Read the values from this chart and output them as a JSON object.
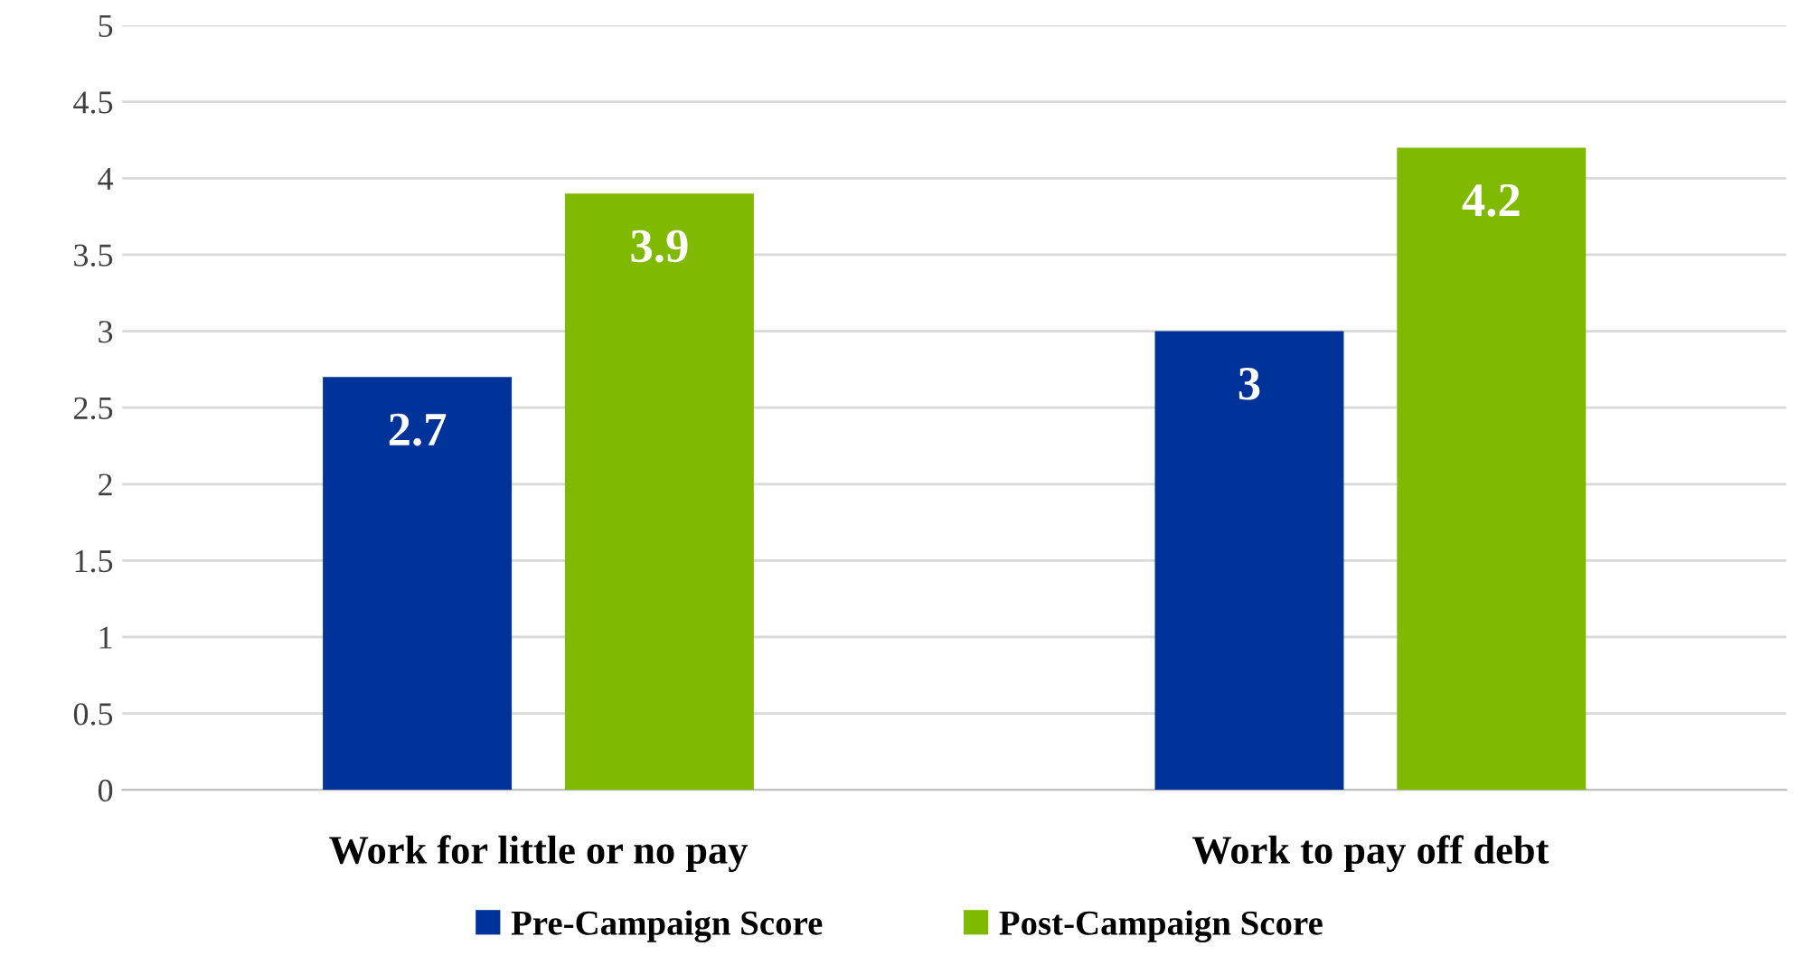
{
  "chart_data": {
    "type": "bar",
    "categories": [
      "Work for little or no pay",
      "Work to pay off debt"
    ],
    "series": [
      {
        "name": "Pre-Campaign Score",
        "color": "#003399",
        "values": [
          2.7,
          3
        ]
      },
      {
        "name": "Post-Campaign Score",
        "color": "#7fba00",
        "values": [
          3.9,
          4.2
        ]
      }
    ],
    "ylim": [
      0,
      5
    ],
    "yticks": [
      0,
      0.5,
      1,
      1.5,
      2,
      2.5,
      3,
      3.5,
      4,
      4.5,
      5
    ],
    "grid": "y",
    "legend": "bottom",
    "data_labels": true
  }
}
